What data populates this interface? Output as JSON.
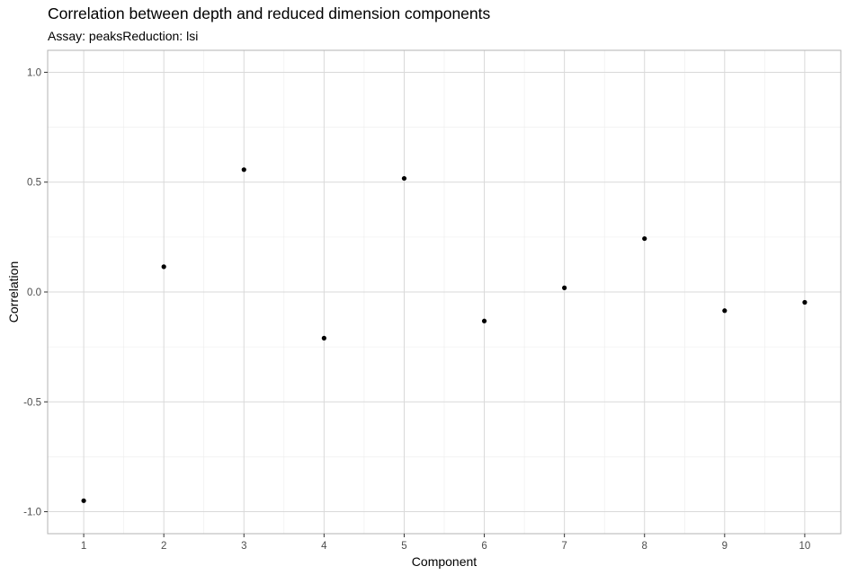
{
  "chart_data": {
    "type": "scatter",
    "title": "Correlation between depth and reduced dimension components",
    "subtitle": "Assay: peaksReduction: lsi",
    "xlabel": "Component",
    "ylabel": "Correlation",
    "x": [
      1,
      2,
      3,
      4,
      5,
      6,
      7,
      8,
      9,
      10
    ],
    "y": [
      -0.95,
      0.115,
      0.557,
      -0.21,
      0.517,
      -0.132,
      0.019,
      0.243,
      -0.085,
      -0.047
    ],
    "xlim": [
      0.55,
      10.45
    ],
    "ylim": [
      -1.1,
      1.1
    ],
    "xticks": [
      "1",
      "2",
      "3",
      "4",
      "5",
      "6",
      "7",
      "8",
      "9",
      "10"
    ],
    "yticks": [
      "-1.0",
      "-0.5",
      "0.0",
      "0.5",
      "1.0"
    ],
    "grid": true,
    "point_color": "#000000",
    "theme": "light"
  }
}
